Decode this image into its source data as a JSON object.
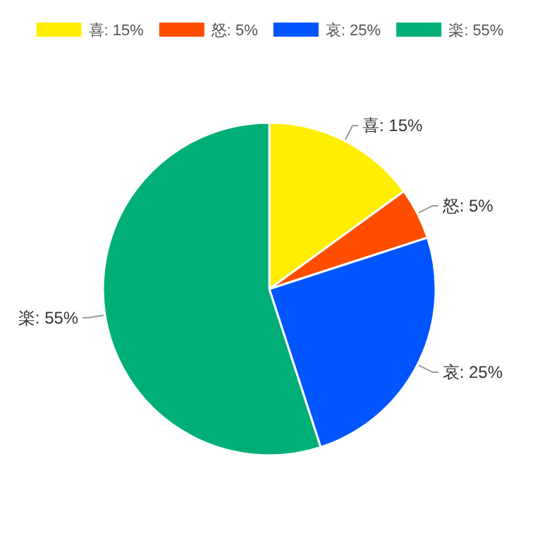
{
  "chart_data": {
    "type": "pie",
    "categories": [
      "喜: 15%",
      "怒: 5%",
      "哀: 25%",
      "楽: 55%"
    ],
    "values": [
      15,
      5,
      25,
      55
    ],
    "colors": [
      "#ffee00",
      "#ff4e00",
      "#0055ff",
      "#00af78"
    ],
    "legend": "top"
  }
}
